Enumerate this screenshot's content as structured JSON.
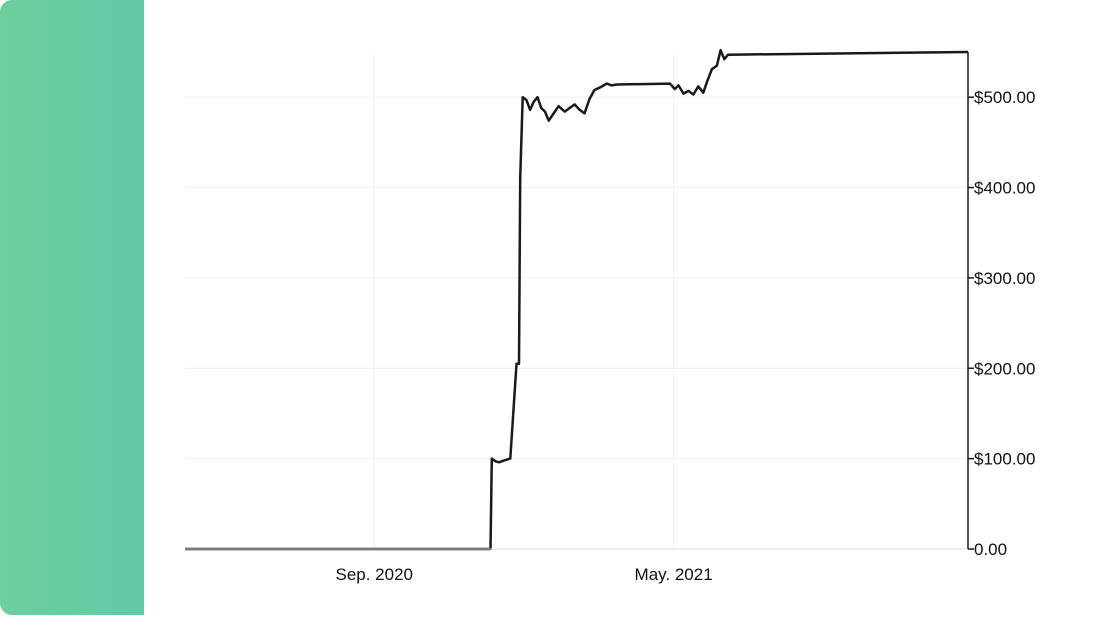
{
  "theme": {
    "panel_gradient_start": "#6dcf9c",
    "panel_gradient_end": "#62c8a8",
    "line_color": "#1a1a1a",
    "grid_color": "#efefef",
    "axis_color": "#1a1a1a"
  },
  "chart_data": {
    "type": "line",
    "title": "",
    "xlabel": "",
    "ylabel": "",
    "y_axis_position": "right",
    "grid": true,
    "legend": "none",
    "ylim": [
      0,
      550
    ],
    "xlim": [
      "2020-04-01",
      "2021-12-25"
    ],
    "x_ticks": [
      {
        "date": "2020-09-01",
        "label": "Sep. 2020"
      },
      {
        "date": "2021-05-01",
        "label": "May. 2021"
      }
    ],
    "y_ticks": [
      {
        "value": 0,
        "label": "0.00"
      },
      {
        "value": 100,
        "label": "$100.00"
      },
      {
        "value": 200,
        "label": "$200.00"
      },
      {
        "value": 300,
        "label": "$300.00"
      },
      {
        "value": 400,
        "label": "$400.00"
      },
      {
        "value": 500,
        "label": "$500.00"
      }
    ],
    "series": [
      {
        "points": [
          [
            "2020-04-01",
            0
          ],
          [
            "2020-12-04",
            0
          ],
          [
            "2020-12-05",
            100
          ],
          [
            "2020-12-08",
            97
          ],
          [
            "2020-12-11",
            96
          ],
          [
            "2020-12-15",
            98
          ],
          [
            "2020-12-20",
            100
          ],
          [
            "2020-12-25",
            205
          ],
          [
            "2020-12-27",
            205
          ],
          [
            "2020-12-28",
            410
          ],
          [
            "2020-12-30",
            500
          ],
          [
            "2021-01-02",
            497
          ],
          [
            "2021-01-05",
            486
          ],
          [
            "2021-01-08",
            495
          ],
          [
            "2021-01-11",
            500
          ],
          [
            "2021-01-14",
            488
          ],
          [
            "2021-01-17",
            484
          ],
          [
            "2021-01-20",
            474
          ],
          [
            "2021-01-24",
            482
          ],
          [
            "2021-01-28",
            490
          ],
          [
            "2021-02-02",
            484
          ],
          [
            "2021-02-06",
            488
          ],
          [
            "2021-02-10",
            492
          ],
          [
            "2021-02-14",
            486
          ],
          [
            "2021-02-18",
            482
          ],
          [
            "2021-02-22",
            498
          ],
          [
            "2021-02-26",
            508
          ],
          [
            "2021-03-03",
            511
          ],
          [
            "2021-03-08",
            515
          ],
          [
            "2021-03-12",
            513
          ],
          [
            "2021-03-16",
            514
          ],
          [
            "2021-04-28",
            515
          ],
          [
            "2021-05-02",
            509
          ],
          [
            "2021-05-05",
            513
          ],
          [
            "2021-05-09",
            504
          ],
          [
            "2021-05-13",
            507
          ],
          [
            "2021-05-17",
            503
          ],
          [
            "2021-05-21",
            512
          ],
          [
            "2021-05-25",
            505
          ],
          [
            "2021-05-28",
            517
          ],
          [
            "2021-06-01",
            531
          ],
          [
            "2021-06-05",
            535
          ],
          [
            "2021-06-08",
            552
          ],
          [
            "2021-06-11",
            542
          ],
          [
            "2021-06-14",
            547
          ],
          [
            "2021-12-25",
            550
          ]
        ]
      }
    ]
  }
}
